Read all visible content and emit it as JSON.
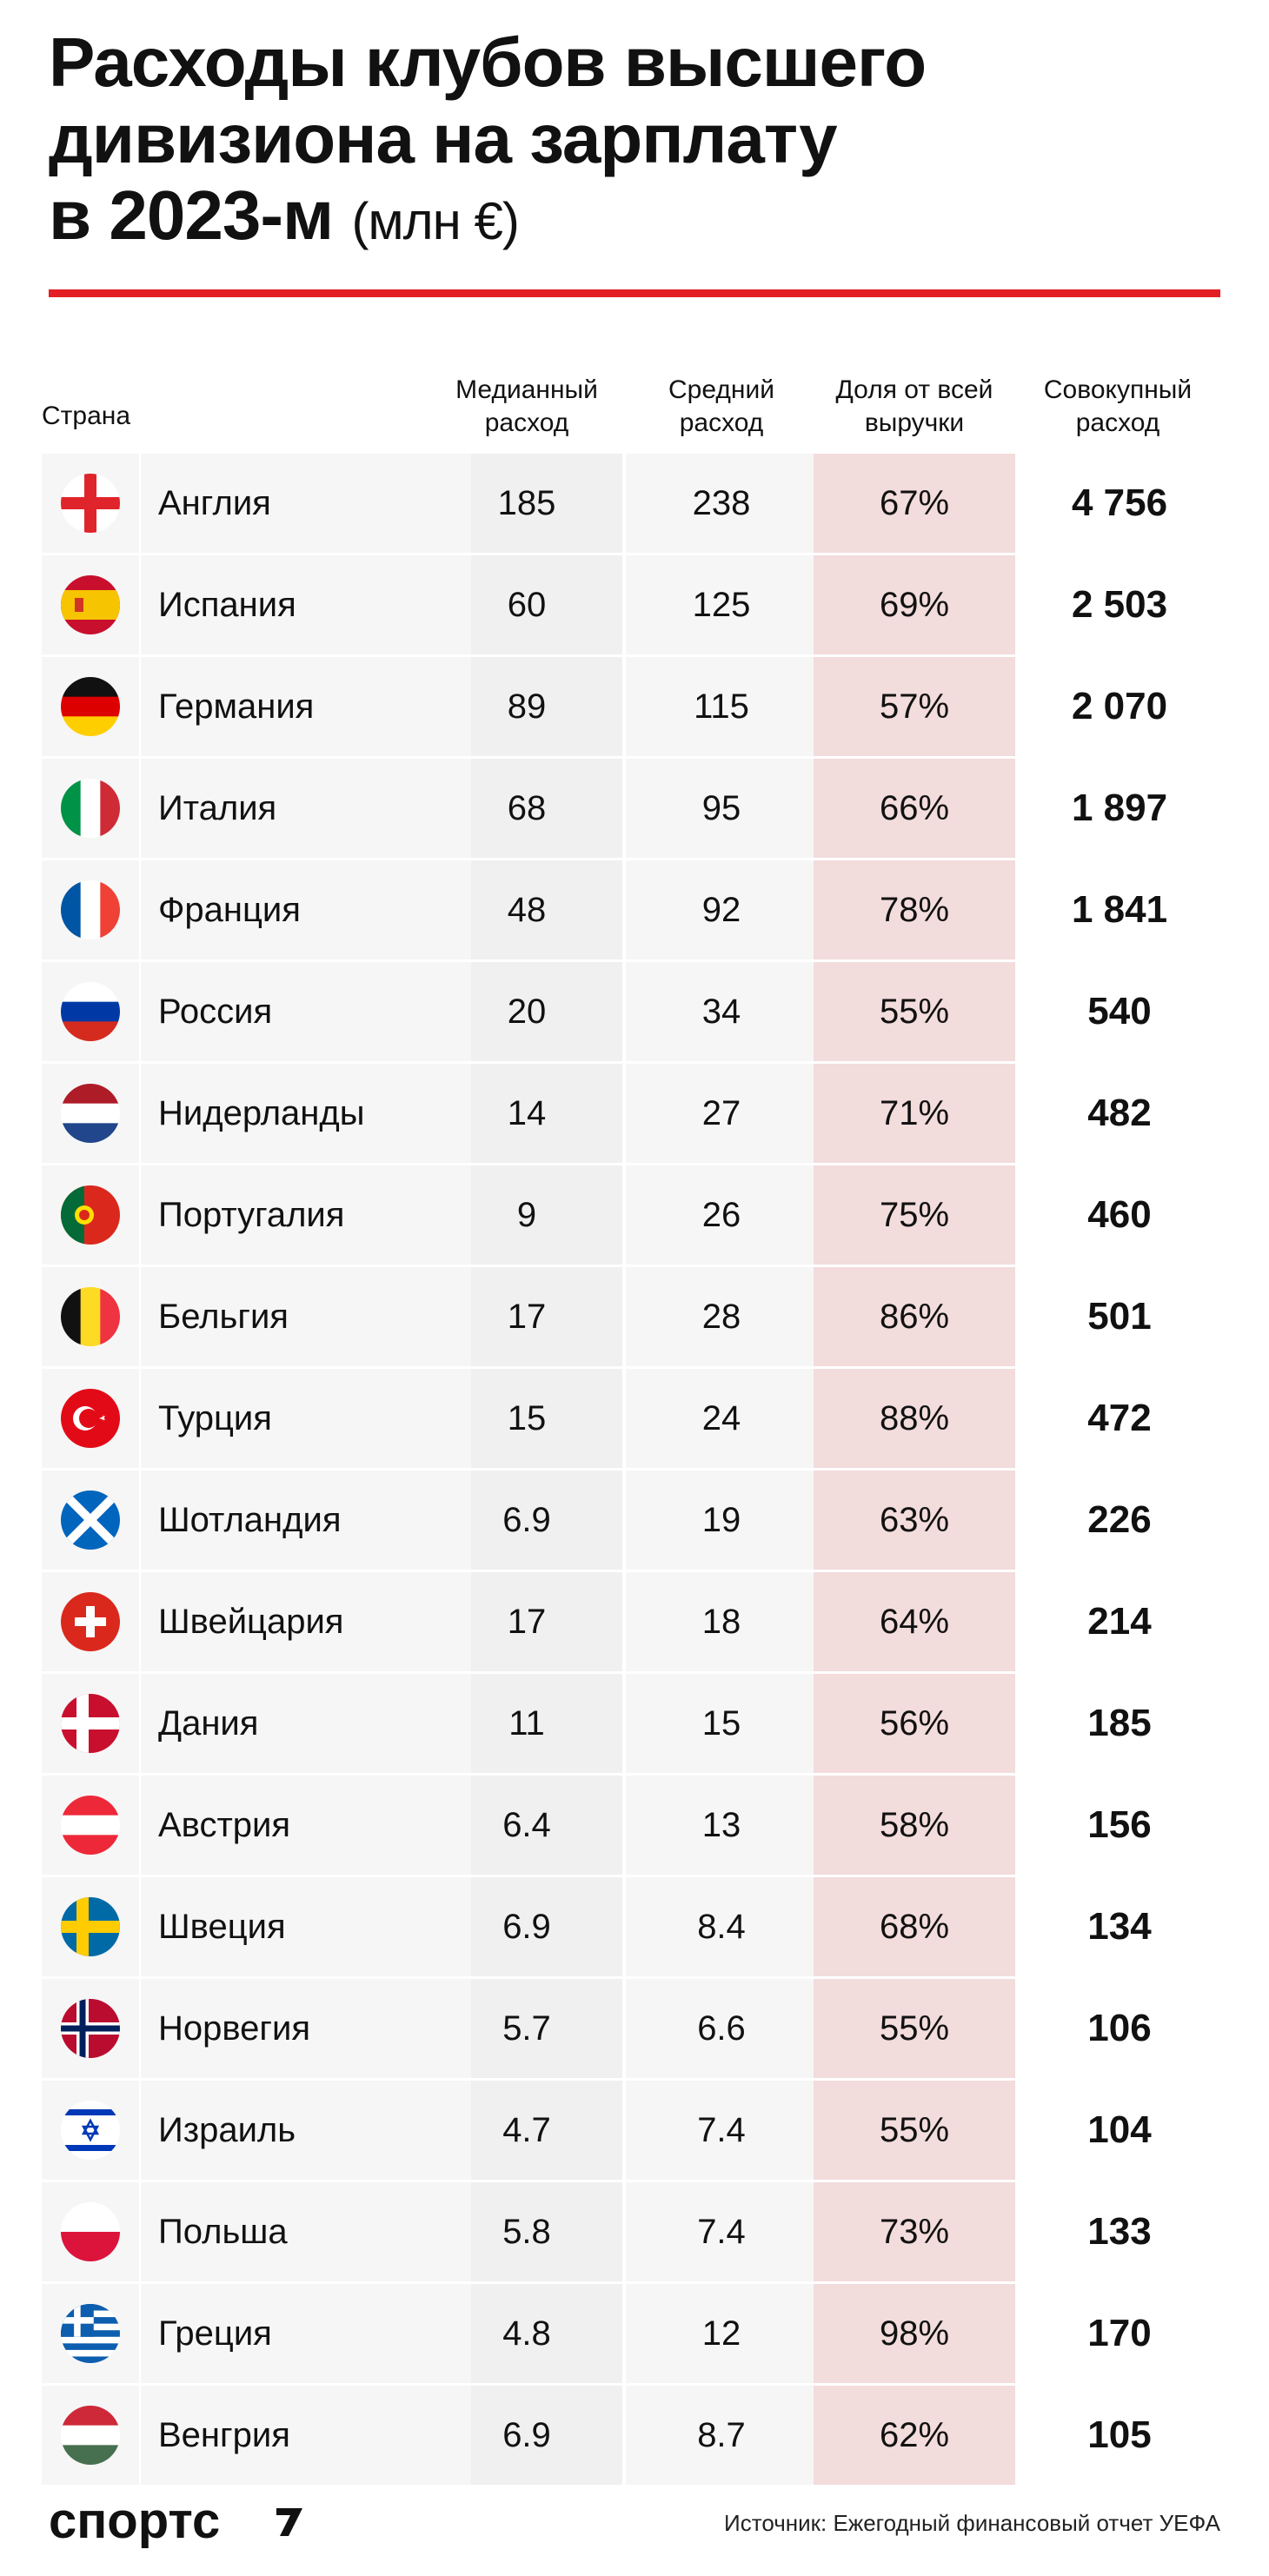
{
  "title": {
    "line1": "Расходы клубов высшего",
    "line2": "дивизиона на зарплату",
    "line3_main": "в 2023-м",
    "line3_unit": "(млн €)"
  },
  "headers": {
    "country": "Страна",
    "median_l1": "Медианный",
    "median_l2": "расход",
    "avg_l1": "Средний",
    "avg_l2": "расход",
    "share_l1": "Доля от всей",
    "share_l2": "выручки",
    "total_l1": "Совокупный",
    "total_l2": "расход"
  },
  "colors": {
    "accent_red": "#e31e24",
    "share_column_bg": "#f3dcdc"
  },
  "chart_data": {
    "type": "table",
    "columns": [
      "Страна",
      "Медианный расход",
      "Средний расход",
      "Доля от всей выручки",
      "Совокупный расход"
    ],
    "rows": [
      {
        "country": "Англия",
        "flag": "england",
        "median": "185",
        "average": "238",
        "share": "67%",
        "total": "4 756"
      },
      {
        "country": "Испания",
        "flag": "spain",
        "median": "60",
        "average": "125",
        "share": "69%",
        "total": "2 503"
      },
      {
        "country": "Германия",
        "flag": "germany",
        "median": "89",
        "average": "115",
        "share": "57%",
        "total": "2 070"
      },
      {
        "country": "Италия",
        "flag": "italy",
        "median": "68",
        "average": "95",
        "share": "66%",
        "total": "1 897"
      },
      {
        "country": "Франция",
        "flag": "france",
        "median": "48",
        "average": "92",
        "share": "78%",
        "total": "1 841"
      },
      {
        "country": "Россия",
        "flag": "russia",
        "median": "20",
        "average": "34",
        "share": "55%",
        "total": "540"
      },
      {
        "country": "Нидерланды",
        "flag": "netherlands",
        "median": "14",
        "average": "27",
        "share": "71%",
        "total": "482"
      },
      {
        "country": "Португалия",
        "flag": "portugal",
        "median": "9",
        "average": "26",
        "share": "75%",
        "total": "460"
      },
      {
        "country": "Бельгия",
        "flag": "belgium",
        "median": "17",
        "average": "28",
        "share": "86%",
        "total": "501"
      },
      {
        "country": "Турция",
        "flag": "turkey",
        "median": "15",
        "average": "24",
        "share": "88%",
        "total": "472"
      },
      {
        "country": "Шотландия",
        "flag": "scotland",
        "median": "6.9",
        "average": "19",
        "share": "63%",
        "total": "226"
      },
      {
        "country": "Швейцария",
        "flag": "switzerland",
        "median": "17",
        "average": "18",
        "share": "64%",
        "total": "214"
      },
      {
        "country": "Дания",
        "flag": "denmark",
        "median": "11",
        "average": "15",
        "share": "56%",
        "total": "185"
      },
      {
        "country": "Австрия",
        "flag": "austria",
        "median": "6.4",
        "average": "13",
        "share": "58%",
        "total": "156"
      },
      {
        "country": "Швеция",
        "flag": "sweden",
        "median": "6.9",
        "average": "8.4",
        "share": "68%",
        "total": "134"
      },
      {
        "country": "Норвегия",
        "flag": "norway",
        "median": "5.7",
        "average": "6.6",
        "share": "55%",
        "total": "106"
      },
      {
        "country": "Израиль",
        "flag": "israel",
        "median": "4.7",
        "average": "7.4",
        "share": "55%",
        "total": "104"
      },
      {
        "country": "Польша",
        "flag": "poland",
        "median": "5.8",
        "average": "7.4",
        "share": "73%",
        "total": "133"
      },
      {
        "country": "Греция",
        "flag": "greece",
        "median": "4.8",
        "average": "12",
        "share": "98%",
        "total": "170"
      },
      {
        "country": "Венгрия",
        "flag": "hungary",
        "median": "6.9",
        "average": "8.7",
        "share": "62%",
        "total": "105"
      }
    ]
  },
  "footer": {
    "logo": "спортс",
    "source": "Источник: Ежегодный финансовый отчет УЕФА"
  }
}
